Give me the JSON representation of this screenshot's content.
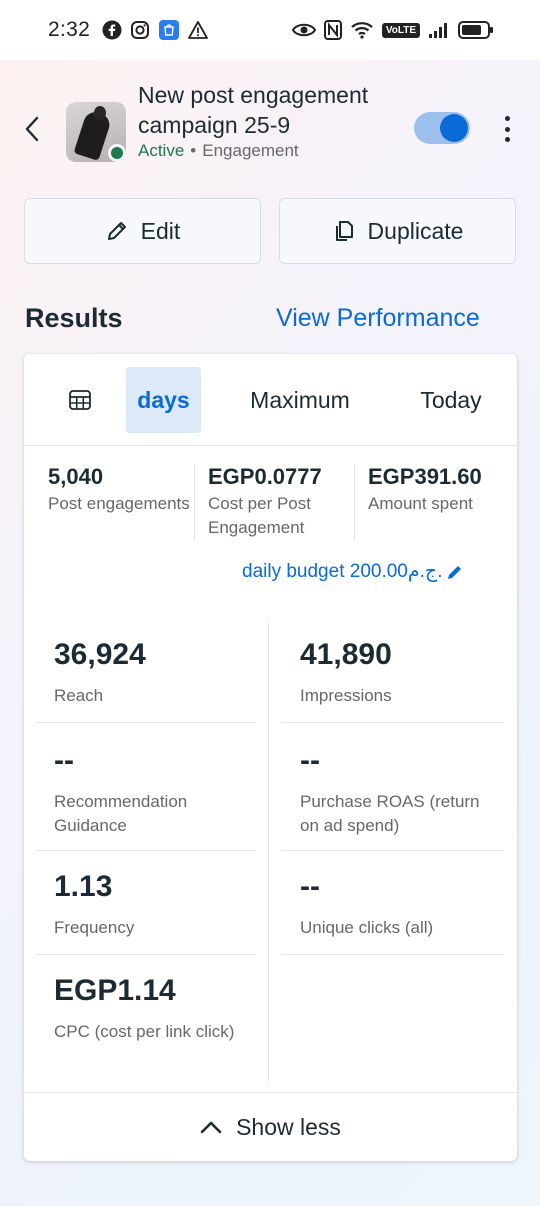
{
  "status_bar": {
    "time": "2:32",
    "left_icons": [
      "facebook-icon",
      "instagram-icon",
      "store-icon",
      "warning-icon"
    ],
    "right_icons": [
      "eye-icon",
      "nfc-icon",
      "wifi-icon",
      "volte-icon",
      "signal-icon",
      "battery-icon"
    ],
    "volte_label": "VoLTE"
  },
  "header": {
    "title": "New post engagement campaign 25-9",
    "status": "Active",
    "separator": "•",
    "objective": "Engagement",
    "toggle_on": true
  },
  "actions": {
    "edit_label": "Edit",
    "duplicate_label": "Duplicate"
  },
  "results": {
    "title": "Results",
    "view_performance": "View Performance"
  },
  "date_tabs": {
    "days": "days",
    "maximum": "Maximum",
    "today": "Today"
  },
  "summary": [
    {
      "value": "5,040",
      "label": "Post engagements"
    },
    {
      "value": "EGP0.0777",
      "label": "Cost per Post Engagement"
    },
    {
      "value": "EGP391.60",
      "label": "Amount spent"
    }
  ],
  "budget": "daily budget 200.00ج.م.",
  "metrics": {
    "reach": {
      "value": "36,924",
      "label": "Reach"
    },
    "impressions": {
      "value": "41,890",
      "label": "Impressions"
    },
    "recommendation": {
      "value": "--",
      "label": "Recommendation Guidance"
    },
    "roas": {
      "value": "--",
      "label": "Purchase ROAS (return on ad spend)"
    },
    "frequency": {
      "value": "1.13",
      "label": "Frequency"
    },
    "unique_clicks": {
      "value": "--",
      "label": "Unique clicks (all)"
    },
    "cpc": {
      "value": "EGP1.14",
      "label": "CPC (cost per link click)"
    }
  },
  "show_less": "Show less",
  "colors": {
    "accent": "#0a6ad6",
    "active_green": "#1b7a4c",
    "text": "#1c2b33",
    "secondary": "#65676b"
  }
}
